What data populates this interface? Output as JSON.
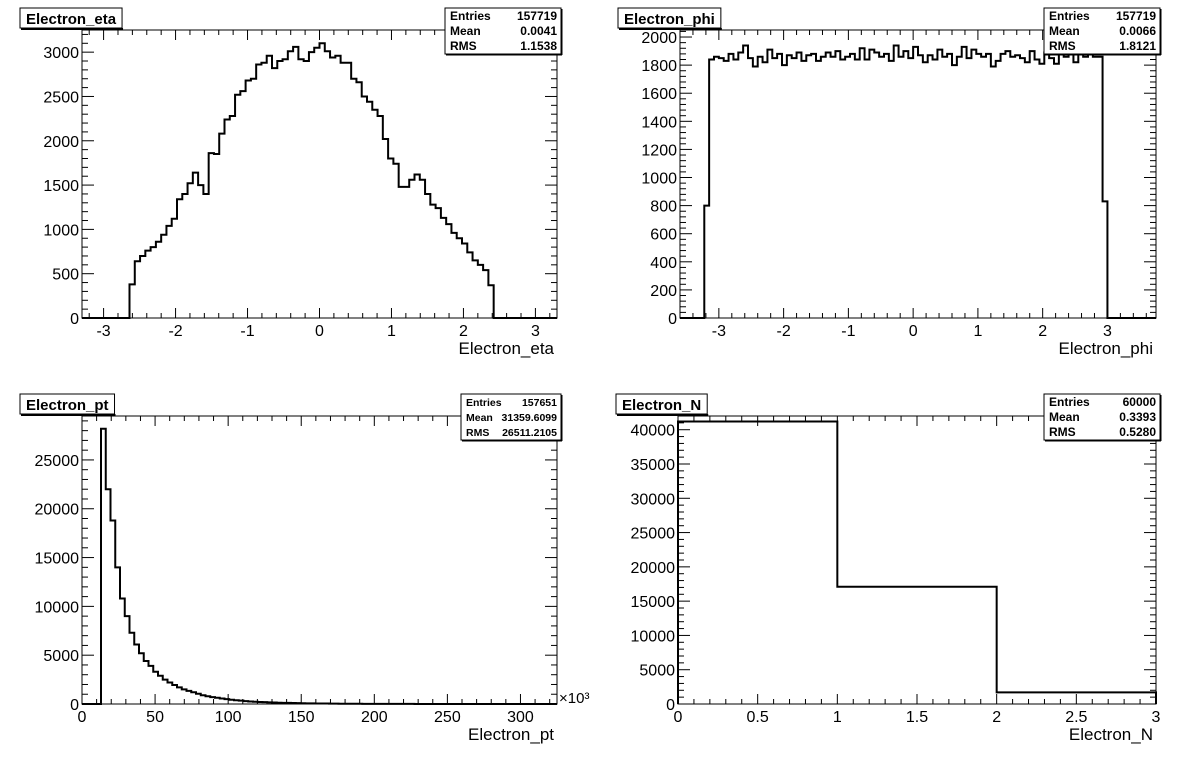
{
  "chart_data": [
    {
      "type": "histogram",
      "title": "Electron_eta",
      "xlabel": "Electron_eta",
      "ylabel": "",
      "xlim": [
        -3.3,
        3.3
      ],
      "ylim": [
        0,
        3250
      ],
      "xticks": [
        -3,
        -2,
        -1,
        0,
        1,
        2,
        3
      ],
      "yticks": [
        0,
        500,
        1000,
        1500,
        2000,
        2500,
        3000
      ],
      "x_multiplier": "",
      "bin_range": [
        -3.3,
        3.3
      ],
      "values": [
        0,
        0,
        0,
        0,
        0,
        0,
        0,
        0,
        0,
        380,
        640,
        700,
        760,
        800,
        860,
        940,
        1040,
        1120,
        1340,
        1400,
        1520,
        1640,
        1500,
        1400,
        1860,
        1850,
        2080,
        2240,
        2280,
        2520,
        2560,
        2680,
        2700,
        2860,
        2880,
        2960,
        2820,
        2900,
        2920,
        3010,
        3060,
        2920,
        2900,
        3000,
        3050,
        3100,
        3010,
        2940,
        2960,
        2880,
        2880,
        2700,
        2660,
        2500,
        2440,
        2350,
        2280,
        2020,
        1800,
        1740,
        1480,
        1480,
        1560,
        1620,
        1560,
        1400,
        1280,
        1240,
        1130,
        1060,
        960,
        900,
        840,
        740,
        650,
        600,
        540,
        370,
        0,
        0,
        0,
        0,
        0,
        0,
        0,
        0,
        0,
        0,
        0,
        0
      ],
      "stats": {
        "entries_label": "Entries",
        "entries": "157719",
        "mean_label": "Mean",
        "mean": "0.0041",
        "rms_label": "RMS",
        "rms": "1.1538"
      }
    },
    {
      "type": "histogram",
      "title": "Electron_phi",
      "xlabel": "Electron_phi",
      "ylabel": "",
      "xlim": [
        -3.6,
        3.75
      ],
      "ylim": [
        0,
        2050
      ],
      "xticks": [
        -3,
        -2,
        -1,
        0,
        1,
        2,
        3
      ],
      "yticks": [
        0,
        200,
        400,
        600,
        800,
        1000,
        1200,
        1400,
        1600,
        1800,
        2000
      ],
      "x_multiplier": "",
      "bin_range": [
        -3.6,
        3.75
      ],
      "values": [
        0,
        0,
        0,
        0,
        0,
        800,
        1840,
        1860,
        1850,
        1830,
        1880,
        1840,
        1890,
        1940,
        1850,
        1790,
        1860,
        1820,
        1910,
        1850,
        1880,
        1800,
        1870,
        1850,
        1890,
        1830,
        1870,
        1880,
        1830,
        1860,
        1890,
        1860,
        1900,
        1840,
        1860,
        1880,
        1840,
        1920,
        1840,
        1910,
        1890,
        1860,
        1880,
        1830,
        1940,
        1860,
        1900,
        1850,
        1930,
        1870,
        1820,
        1870,
        1840,
        1910,
        1860,
        1880,
        1800,
        1860,
        1930,
        1850,
        1910,
        1880,
        1860,
        1880,
        1790,
        1830,
        1880,
        1900,
        1860,
        1870,
        1850,
        1820,
        1900,
        1840,
        1810,
        1890,
        1850,
        1810,
        1880,
        1860,
        1880,
        1820,
        1900,
        1860,
        1880,
        1860,
        1860,
        830,
        0,
        0,
        0,
        0,
        0,
        0,
        0,
        0,
        0,
        0
      ],
      "stats": {
        "entries_label": "Entries",
        "entries": "157719",
        "mean_label": "Mean",
        "mean": "0.0066",
        "rms_label": "RMS",
        "rms": "1.8121"
      }
    },
    {
      "type": "histogram",
      "title": "Electron_pt",
      "xlabel": "Electron_pt",
      "ylabel": "",
      "xlim": [
        0,
        325
      ],
      "ylim": [
        0,
        29500
      ],
      "xticks": [
        0,
        50,
        100,
        150,
        200,
        250,
        300
      ],
      "yticks": [
        0,
        5000,
        10000,
        15000,
        20000,
        25000
      ],
      "x_multiplier": "×10³",
      "bin_range": [
        0,
        325
      ],
      "values": [
        0,
        0,
        0,
        0,
        28200,
        22000,
        18800,
        14000,
        10800,
        9000,
        7300,
        6100,
        5200,
        4400,
        3900,
        3300,
        2900,
        2500,
        2200,
        1950,
        1700,
        1500,
        1350,
        1200,
        1050,
        900,
        800,
        700,
        640,
        560,
        500,
        440,
        390,
        350,
        300,
        260,
        230,
        210,
        190,
        170,
        150,
        130,
        120,
        110,
        100,
        90,
        80,
        70,
        60,
        55,
        50,
        45,
        40,
        35,
        30,
        28,
        25,
        22,
        20,
        18,
        16,
        15,
        14,
        13,
        12,
        11,
        10,
        9,
        8,
        7,
        6,
        6,
        5,
        5,
        4,
        4,
        3,
        3,
        3,
        2,
        2,
        2,
        2,
        1,
        1,
        1,
        1,
        1,
        0,
        0,
        0,
        0,
        0,
        0,
        0,
        0,
        0,
        0,
        0,
        0
      ],
      "stats": {
        "entries_label": "Entries",
        "entries": "157651",
        "mean_label": "Mean",
        "mean": "31359.6099",
        "rms_label": "RMS",
        "rms": "26511.2105"
      }
    },
    {
      "type": "histogram",
      "title": "Electron_N",
      "xlabel": "Electron_N",
      "ylabel": "",
      "xlim": [
        0,
        3
      ],
      "ylim": [
        0,
        42000
      ],
      "xticks": [
        0,
        0.5,
        1,
        1.5,
        2,
        2.5,
        3
      ],
      "yticks": [
        0,
        5000,
        10000,
        15000,
        20000,
        25000,
        30000,
        35000,
        40000
      ],
      "x_multiplier": "",
      "bin_range": [
        0,
        3
      ],
      "values": [
        41200,
        17100,
        1700
      ],
      "stats": {
        "entries_label": "Entries",
        "entries": "60000",
        "mean_label": "Mean",
        "mean": "0.3393",
        "rms_label": "RMS",
        "rms": "0.5280"
      }
    }
  ]
}
